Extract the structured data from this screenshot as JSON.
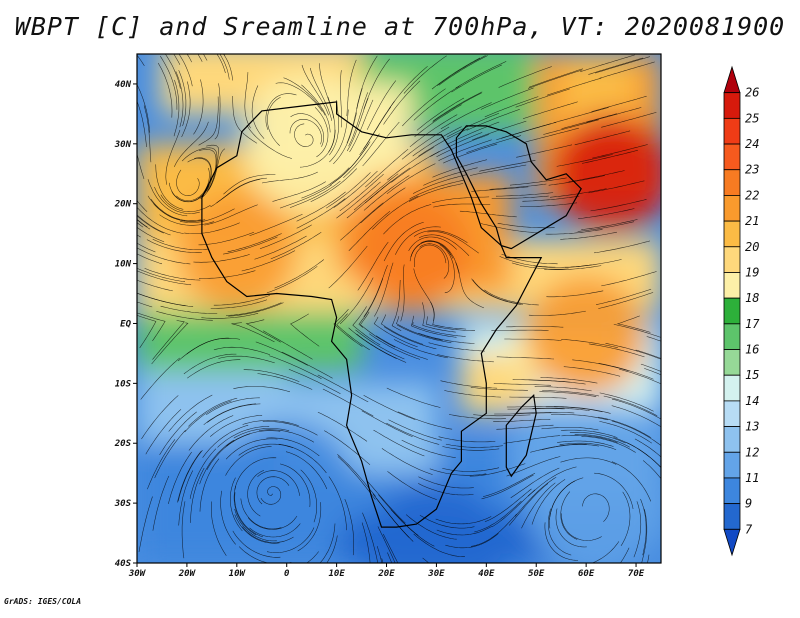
{
  "title": "WBPT [C] and Sreamline at 700hPa, VT: 2020081900",
  "footer": "GrADS: IGES/COLA",
  "axes": {
    "lat_labels": [
      "40N",
      "30N",
      "20N",
      "10N",
      "EQ",
      "10S",
      "20S",
      "30S",
      "40S"
    ],
    "lat_values": [
      40,
      30,
      20,
      10,
      0,
      -10,
      -20,
      -30,
      -40
    ],
    "lon_labels": [
      "30W",
      "20W",
      "10W",
      "0",
      "10E",
      "20E",
      "30E",
      "40E",
      "50E",
      "60E",
      "70E"
    ],
    "lon_values": [
      -30,
      -20,
      -10,
      0,
      10,
      20,
      30,
      40,
      50,
      60,
      70
    ],
    "lon_range": [
      -30,
      75
    ],
    "lat_range": [
      -40,
      45
    ]
  },
  "colorbar": {
    "labels": [
      "26",
      "25",
      "24",
      "23",
      "22",
      "21",
      "20",
      "19",
      "18",
      "17",
      "16",
      "15",
      "14",
      "13",
      "12",
      "11",
      "9",
      "7"
    ],
    "colors": [
      "#b0000c",
      "#d61a0c",
      "#ef3c16",
      "#f65a1e",
      "#f77b22",
      "#f99a2d",
      "#fbbb45",
      "#fed87c",
      "#fdf0a8",
      "#2db03a",
      "#5dc46b",
      "#96d997",
      "#d4f2ef",
      "#b7dcf5",
      "#8ec2ef",
      "#63a4e8",
      "#3d86de",
      "#2368cf",
      "#1149c4"
    ]
  },
  "fields": [
    {
      "name": "sahara-warm-core",
      "lon": 25,
      "lat": 12,
      "value": 23
    },
    {
      "name": "arabia-hot-core",
      "lon": 65,
      "lat": 25,
      "value": 26
    },
    {
      "name": "mid-atlantic-high",
      "lon": 5,
      "lat": 30,
      "value": 19
    },
    {
      "name": "west-africa-band",
      "lon": -10,
      "lat": 12,
      "value": 22
    },
    {
      "name": "indian-ocean-band",
      "lon": 60,
      "lat": -2,
      "value": 22
    },
    {
      "name": "south-atlantic-cool",
      "lon": 0,
      "lat": -28,
      "value": 11
    },
    {
      "name": "south-indian-cool",
      "lon": 62,
      "lat": -30,
      "value": 12
    },
    {
      "name": "southern-ocean-cold",
      "lon": 30,
      "lat": -38,
      "value": 9
    }
  ]
}
